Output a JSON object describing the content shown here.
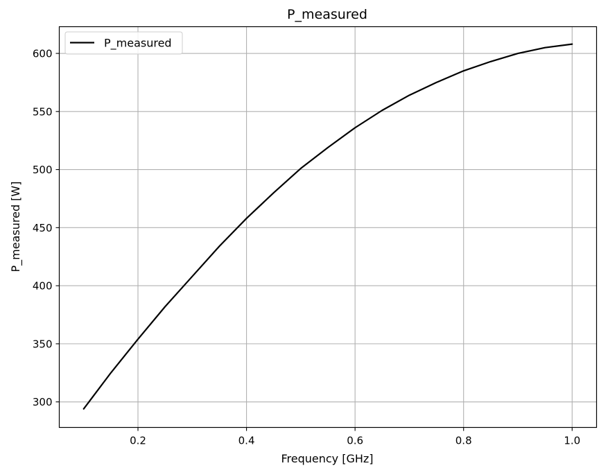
{
  "chart_data": {
    "type": "line",
    "title": "P_measured",
    "xlabel": "Frequency [GHz]",
    "ylabel": "P_measured [W]",
    "xlim": [
      0.055,
      1.045
    ],
    "ylim": [
      278,
      623
    ],
    "xticks": [
      0.2,
      0.4,
      0.6,
      0.8,
      1.0
    ],
    "xtick_labels": [
      "0.2",
      "0.4",
      "0.6",
      "0.8",
      "1.0"
    ],
    "yticks": [
      300,
      350,
      400,
      450,
      500,
      550,
      600
    ],
    "ytick_labels": [
      "300",
      "350",
      "400",
      "450",
      "500",
      "550",
      "600"
    ],
    "grid": true,
    "legend_position": "top-left",
    "series": [
      {
        "name": "P_measured",
        "color": "#000000",
        "x": [
          0.1,
          0.15,
          0.2,
          0.25,
          0.3,
          0.35,
          0.4,
          0.45,
          0.5,
          0.55,
          0.6,
          0.65,
          0.7,
          0.75,
          0.8,
          0.85,
          0.9,
          0.95,
          1.0
        ],
        "y": [
          294,
          325,
          354,
          382,
          408,
          434,
          458,
          480,
          501,
          519,
          536,
          551,
          564,
          575,
          585,
          593,
          600,
          605,
          608
        ]
      }
    ]
  }
}
